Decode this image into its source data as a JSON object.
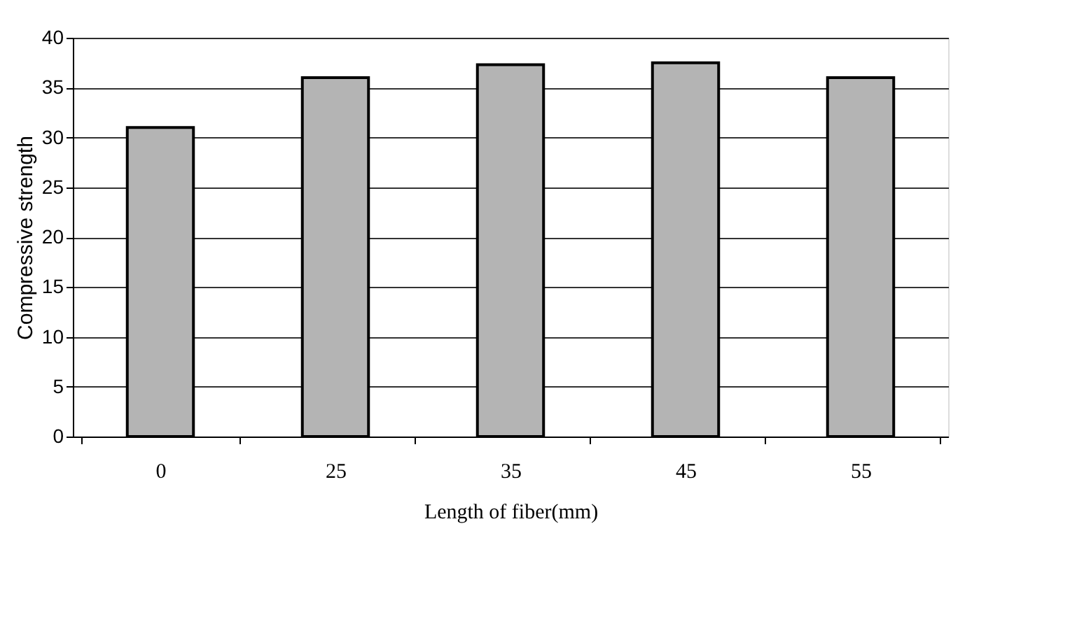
{
  "chart_data": {
    "type": "bar",
    "xlabel": "Length of fiber(mm)",
    "ylabel": "Compressive strength",
    "categories": [
      "0",
      "25",
      "35",
      "45",
      "55"
    ],
    "values": [
      31,
      36,
      37.3,
      37.5,
      36
    ],
    "color": "#b4b4b4",
    "ylim": [
      0,
      40
    ],
    "yticks": [
      0,
      5,
      10,
      15,
      20,
      25,
      30,
      35,
      40
    ],
    "grid": "y"
  }
}
